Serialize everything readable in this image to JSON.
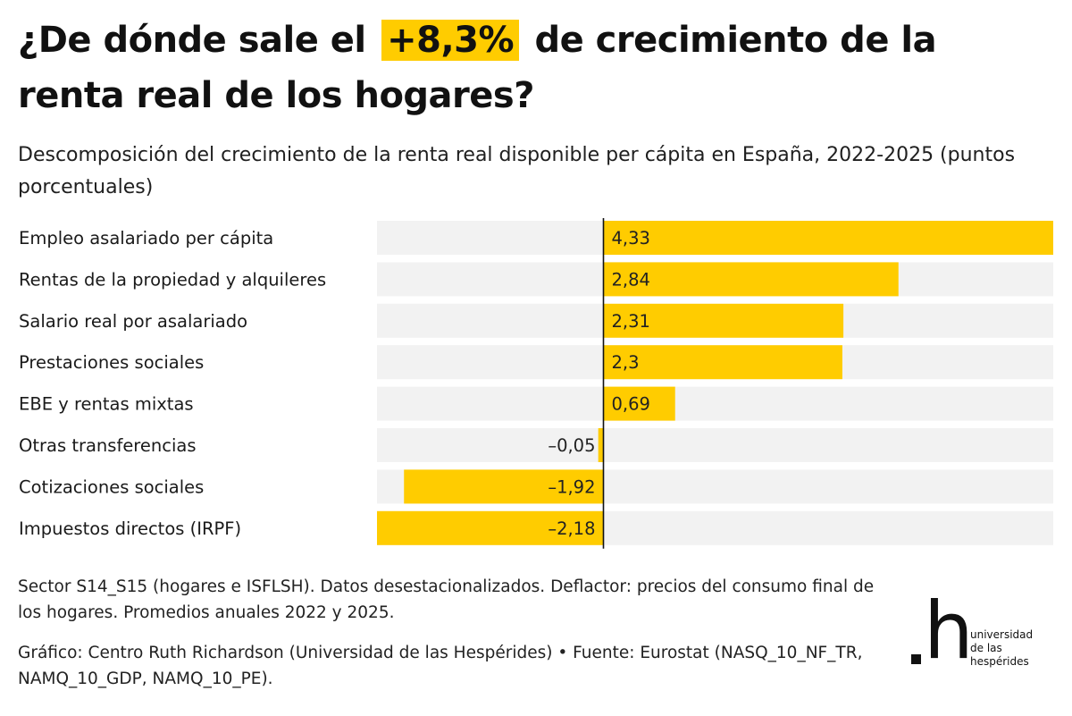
{
  "title": {
    "before": "¿De dónde sale el",
    "highlight": "+8,3%",
    "after": "de crecimiento de la renta real de los hogares?"
  },
  "subtitle": "Descomposición del crecimiento de la renta real disponible per cápita en España, 2022-2025 (puntos porcentuales)",
  "colors": {
    "bar": "#ffcc00",
    "track": "#f2f2f2",
    "axis": "#111111",
    "text": "#222222"
  },
  "chart_data": {
    "type": "bar",
    "orientation": "horizontal",
    "categories": [
      "Empleo asalariado per cápita",
      "Rentas de la propiedad y alquileres",
      "Salario real por asalariado",
      "Prestaciones sociales",
      "EBE y rentas mixtas",
      "Otras transferencias",
      "Cotizaciones sociales",
      "Impuestos directos (IRPF)"
    ],
    "values": [
      4.33,
      2.84,
      2.31,
      2.3,
      0.69,
      -0.05,
      -1.92,
      -2.18
    ],
    "value_labels": [
      "4,33",
      "2,84",
      "2,31",
      "2,3",
      "0,69",
      "–0,05",
      "–1,92",
      "–2,18"
    ],
    "xlim": [
      -2.18,
      4.33
    ],
    "grid": false,
    "legend": "none"
  },
  "footnote": "Sector S14_S15 (hogares e ISFLSH). Datos desestacionalizados. Deflactor: precios del consumo final de los hogares. Promedios anuales 2022 y 2025.",
  "credit": "Gráfico: Centro Ruth Richardson (Universidad de las Hespérides) • Fuente: Eurostat (NASQ_10_NF_TR, NAMQ_10_GDP, NAMQ_10_PE).",
  "logo": {
    "mark": "h",
    "words": [
      "universidad",
      "de las",
      "hespérides"
    ]
  }
}
